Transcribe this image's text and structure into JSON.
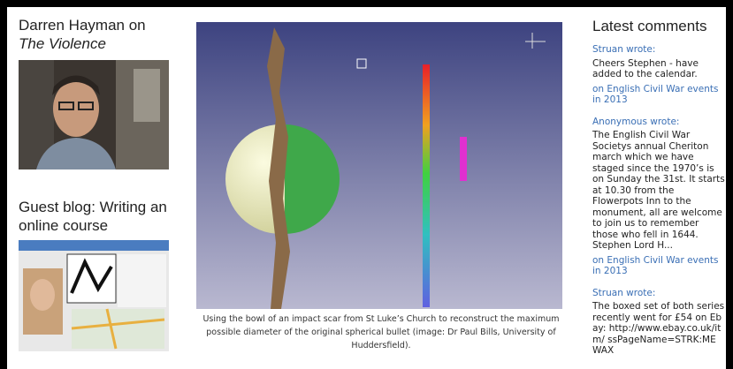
{
  "posts": [
    {
      "title": "Darren Hayman on",
      "title_italic": "The Violence"
    },
    {
      "title": "Guest blog: Writing an online course"
    }
  ],
  "figure": {
    "caption": "Using the bowl of an impact scar from St Luke’s Church to reconstruct the maximum possible diameter of the original spherical bullet (image: Dr Paul Bills, University of Huddersfield)."
  },
  "sidebar": {
    "heading": "Latest comments",
    "comments": [
      {
        "author": "Struan wrote:",
        "text": "Cheers Stephen - have added to the calendar.",
        "link": "on English Civil War events in 2013"
      },
      {
        "author": "Anonymous wrote:",
        "text": "The English Civil War Societys annual Cheriton march which we have staged since the 1970’s is on Sunday the 31st. It starts at 10.30 from the Flowerpots Inn to the monument, all are welcome to join us to remember those who fell in 1644. Stephen Lord H...",
        "link": "on English Civil War events in 2013"
      },
      {
        "author": "Struan wrote:",
        "text": "The boxed set of both series recently went for £54 on Ebay: http://www.ebay.co.uk/itm/ ssPageName=STRK:MEWAX"
      }
    ]
  }
}
